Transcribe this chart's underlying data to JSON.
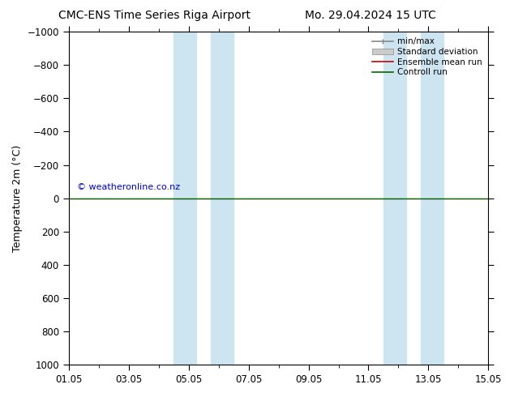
{
  "title": "CMC-ENS Time Series Riga Airport",
  "title2": "Mo. 29.04.2024 15 UTC",
  "ylabel": "Temperature 2m (°C)",
  "ylim_top": -1000,
  "ylim_bottom": 1000,
  "yticks": [
    -1000,
    -800,
    -600,
    -400,
    -200,
    0,
    200,
    400,
    600,
    800,
    1000
  ],
  "xlim": [
    0,
    14
  ],
  "xtick_positions": [
    0,
    2,
    4,
    6,
    8,
    10,
    12,
    14
  ],
  "xtick_labels": [
    "01.05",
    "03.05",
    "05.05",
    "07.05",
    "09.05",
    "11.05",
    "13.05",
    "15.05"
  ],
  "shade_regions": [
    [
      3.5,
      4.25
    ],
    [
      4.75,
      5.5
    ],
    [
      10.5,
      11.25
    ],
    [
      11.75,
      12.5
    ]
  ],
  "shade_color": "#cce5f0",
  "green_line_y": 0,
  "green_line_color": "#006600",
  "red_line_color": "#cc0000",
  "watermark": "© weatheronline.co.nz",
  "watermark_color": "#0000cc",
  "background_color": "#ffffff",
  "title_fontsize": 10,
  "axis_label_fontsize": 9,
  "tick_fontsize": 8.5,
  "legend_fontsize": 7.5
}
